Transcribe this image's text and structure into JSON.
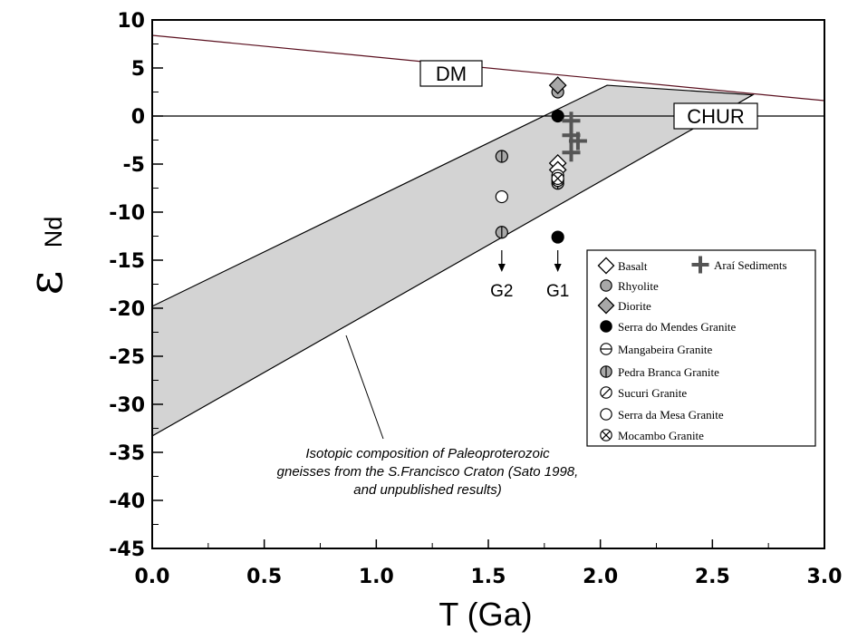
{
  "chart_data": {
    "type": "scatter",
    "xlabel": "T (Ga)",
    "ylabel": {
      "symbol": "ε",
      "subscript": "Nd"
    },
    "xlim": [
      0,
      3
    ],
    "ylim": [
      -45,
      10
    ],
    "xticks": [
      "0.0",
      "0.5",
      "1.0",
      "1.5",
      "2.0",
      "2.5",
      "3.0"
    ],
    "yticks": [
      "10",
      "5",
      "0",
      "-5",
      "-10",
      "-15",
      "-20",
      "-25",
      "-30",
      "-35",
      "-40",
      "-45"
    ],
    "reference_lines": [
      {
        "name": "DM",
        "points": [
          [
            0,
            8.4
          ],
          [
            3,
            1.6
          ]
        ]
      },
      {
        "name": "CHUR",
        "points": [
          [
            0,
            0
          ],
          [
            3,
            0
          ]
        ]
      }
    ],
    "shaded_band": {
      "polygon": [
        [
          0,
          -19.8
        ],
        [
          2.03,
          3.2
        ],
        [
          2.68,
          2.2
        ],
        [
          0,
          -33.3
        ]
      ],
      "color": "#d3d3d3"
    },
    "band_annotation": "Isotopic composition of Paleoproterozoic gneisses from the S.Francisco Craton (Sato 1998, and unpublished results)",
    "band_annotation_lines": [
      "Isotopic composition of Paleoproterozoic",
      "gneisses from the S.Francisco Craton (Sato 1998,",
      "and unpublished results)"
    ],
    "group_labels": [
      {
        "text": "G2",
        "x": 1.56
      },
      {
        "text": "G1",
        "x": 1.81
      }
    ],
    "series": [
      {
        "name": "Basalt",
        "marker": "diamond-open",
        "points": [
          [
            1.81,
            -4.9
          ],
          [
            1.81,
            -5.6
          ]
        ]
      },
      {
        "name": "Rhyolite",
        "marker": "circle-gray",
        "points": [
          [
            1.81,
            2.5
          ]
        ]
      },
      {
        "name": "Diorite",
        "marker": "diamond-gray",
        "points": [
          [
            1.81,
            3.2
          ]
        ]
      },
      {
        "name": "Serra do Mendes Granite",
        "marker": "circle-black",
        "points": [
          [
            1.81,
            0.0
          ],
          [
            1.81,
            -12.6
          ]
        ]
      },
      {
        "name": "Mangabeira Granite",
        "marker": "circle-hbar",
        "points": [
          [
            1.81,
            -6.2
          ]
        ]
      },
      {
        "name": "Pedra Branca Granite",
        "marker": "circle-vbar",
        "points": [
          [
            1.56,
            -4.2
          ],
          [
            1.56,
            -12.1
          ],
          [
            1.81,
            -7.0
          ]
        ]
      },
      {
        "name": "Sucuri Granite",
        "marker": "circle-slash",
        "points": [
          [
            1.81,
            -6.7
          ]
        ]
      },
      {
        "name": "Serra da Mesa Granite",
        "marker": "circle-open",
        "points": [
          [
            1.56,
            -8.4
          ]
        ]
      },
      {
        "name": "Mocambo Granite",
        "marker": "circle-cross",
        "points": [
          [
            1.81,
            -6.5
          ]
        ]
      },
      {
        "name": "Araí Sediments",
        "marker": "plus",
        "points": [
          [
            1.87,
            -0.5
          ],
          [
            1.87,
            -2.0
          ],
          [
            1.87,
            -3.8
          ],
          [
            1.9,
            -2.6
          ]
        ]
      }
    ]
  }
}
